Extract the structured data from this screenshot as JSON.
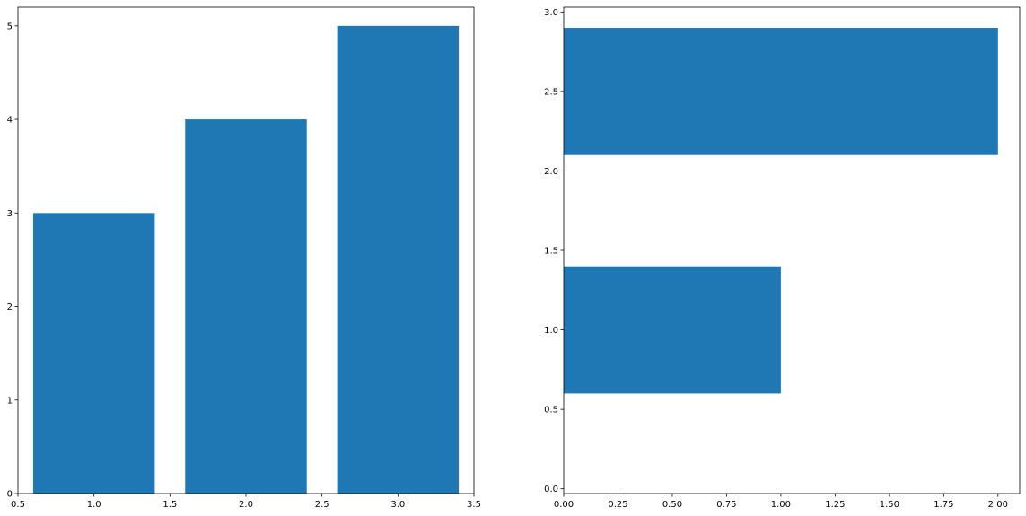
{
  "chart_data": [
    {
      "type": "bar",
      "orientation": "vertical",
      "x": [
        1,
        2,
        3
      ],
      "values": [
        3,
        4,
        5
      ],
      "bar_width": 0.8,
      "xlim": [
        0.5,
        3.5
      ],
      "ylim": [
        0,
        5.2
      ],
      "xticks": [
        0.5,
        1.0,
        1.5,
        2.0,
        2.5,
        3.0,
        3.5
      ],
      "xtick_labels": [
        "0.5",
        "1.0",
        "1.5",
        "2.0",
        "2.5",
        "3.0",
        "3.5"
      ],
      "yticks": [
        0,
        1,
        2,
        3,
        4,
        5
      ],
      "ytick_labels": [
        "0",
        "1",
        "2",
        "3",
        "4",
        "5"
      ],
      "color": "#1f77b4",
      "title": "",
      "xlabel": "",
      "ylabel": "",
      "grid": false
    },
    {
      "type": "bar",
      "orientation": "horizontal",
      "y": [
        1,
        2.5
      ],
      "values": [
        1,
        2
      ],
      "bar_height": 0.8,
      "xlim": [
        0,
        2.1
      ],
      "ylim": [
        -0.03,
        3.03
      ],
      "xticks": [
        0.0,
        0.25,
        0.5,
        0.75,
        1.0,
        1.25,
        1.5,
        1.75,
        2.0
      ],
      "xtick_labels": [
        "0.00",
        "0.25",
        "0.50",
        "0.75",
        "1.00",
        "1.25",
        "1.50",
        "1.75",
        "2.00"
      ],
      "yticks": [
        0,
        0.5,
        1.0,
        1.5,
        2.0,
        2.5,
        3.0
      ],
      "ytick_labels": [
        "0.0",
        "0.5",
        "1.0",
        "1.5",
        "2.0",
        "2.5",
        "3.0"
      ],
      "color": "#1f77b4",
      "title": "",
      "xlabel": "",
      "ylabel": "",
      "grid": false
    }
  ]
}
